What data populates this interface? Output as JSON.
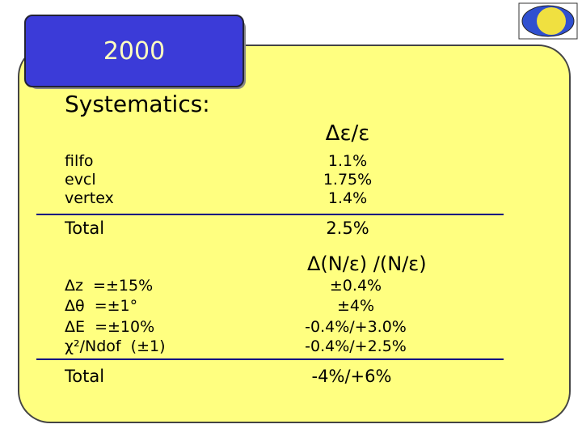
{
  "header": {
    "title": "2000"
  },
  "subtitle": "Systematics:",
  "table1": {
    "header": "Δε/ε",
    "rows": [
      [
        "filfo",
        "1.1%"
      ],
      [
        "evcl",
        "1.75%"
      ],
      [
        "vertex",
        "1.4%"
      ]
    ],
    "total": [
      "Total",
      "2.5%"
    ]
  },
  "table2": {
    "header": "Δ(N/ε) /(N/ε)",
    "rows": [
      [
        "Δz  =±15%",
        "±0.4%"
      ],
      [
        "Δθ  =±1°",
        "±4%"
      ],
      [
        "ΔE  =±10%",
        "-0.4%/+3.0%"
      ],
      [
        "χ²/Ndof  (±1)",
        "-0.4%/+2.5%"
      ]
    ],
    "total": [
      "Total",
      "-4%/+6%"
    ]
  }
}
